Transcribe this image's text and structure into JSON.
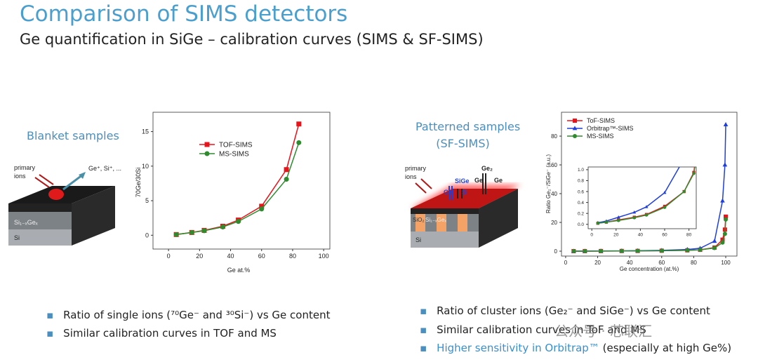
{
  "header": {
    "title": "Comparison of SIMS detectors",
    "subtitle": "Ge quantification in SiGe – calibration curves (SIMS & SF-SIMS)"
  },
  "left": {
    "label": "Blanket samples",
    "diagram": {
      "primary": "primary",
      "ions": "ions",
      "emitted": "Ge⁺, Si⁺, ...",
      "layer": "Si₁₋ₓGeₓ",
      "substrate": "Si"
    },
    "bullets": [
      "Ratio of single ions (⁷⁰Ge⁻ and ³⁰Si⁻) vs Ge content",
      "Similar calibration curves in TOF and MS"
    ]
  },
  "right": {
    "label": [
      "Patterned samples",
      "(SF-SIMS)"
    ],
    "diagram": {
      "primary": "primary",
      "ions": "ions",
      "sige": "SiGe",
      "ge_a": "Ge",
      "si": "Si",
      "ge2": "Ge₂",
      "ge_b": "Ge",
      "ge_c": "Ge",
      "oxide": "SiO₂",
      "layer": "Si₁₋ₓGeₓ",
      "substrate": "Si"
    },
    "bullets": [
      "Ratio of cluster ions (Ge₂⁻ and SiGe⁻) vs Ge content",
      "Similar calibration curves in ToF and MS"
    ],
    "bullet3": {
      "highlight": "Higher sensitivity in Orbitrap™",
      "rest": " (especially at high Ge%)"
    }
  },
  "watermark": "公众号 · 芯联汇",
  "chart_data": [
    {
      "type": "line",
      "x_label": "Ge at.%",
      "y_label": "70Ge/30Si",
      "legend": "upper center",
      "x": [
        5,
        15,
        23,
        35,
        45,
        60,
        76,
        84
      ],
      "xlim": [
        -10,
        104
      ],
      "ylim": [
        -2,
        17.8
      ],
      "xticks": [
        0,
        20,
        40,
        60,
        80,
        100
      ],
      "yticks": [
        0,
        5,
        10,
        15
      ],
      "series": [
        {
          "name": "TOF-SIMS",
          "color": "#e8141b",
          "marker": "square",
          "values": [
            0.1,
            0.4,
            0.7,
            1.3,
            2.2,
            4.2,
            9.5,
            16.1
          ]
        },
        {
          "name": "MS-SIMS",
          "color": "#2e8b2e",
          "marker": "circle",
          "values": [
            0.1,
            0.4,
            0.65,
            1.2,
            2.0,
            3.8,
            8.1,
            13.4
          ]
        }
      ]
    },
    {
      "type": "line",
      "x_label": "Ge concentration (at.%)",
      "y_label": "Ratio Ge₂⁻/SiGe⁻ (a.u.)",
      "legend": "upper left",
      "x": [
        5,
        12,
        22,
        35,
        45,
        60,
        76,
        84,
        93,
        98,
        99.5,
        100
      ],
      "xlim": [
        -2.6,
        107
      ],
      "ylim": [
        -3.4,
        96.6
      ],
      "xticks": [
        0,
        20,
        40,
        60,
        80,
        100
      ],
      "yticks": [
        0,
        20,
        40,
        60,
        80
      ],
      "series": [
        {
          "name": "ToF-SIMS",
          "color": "#e8141b",
          "marker": "square",
          "values": [
            0.02,
            0.04,
            0.08,
            0.13,
            0.18,
            0.33,
            0.6,
            0.95,
            2.5,
            8,
            15,
            24
          ]
        },
        {
          "name": "Orbitrap™-SIMS",
          "color": "#1f3fdc",
          "marker": "triangle",
          "values": [
            0.03,
            0.06,
            0.13,
            0.22,
            0.32,
            0.58,
            1.2,
            2,
            7,
            35,
            60,
            88
          ]
        },
        {
          "name": "MS-SIMS",
          "color": "#2e8b2e",
          "marker": "circle",
          "values": [
            0.02,
            0.04,
            0.07,
            0.12,
            0.17,
            0.31,
            0.6,
            0.93,
            2.2,
            6,
            12,
            22
          ]
        }
      ],
      "inset": {
        "xlim": [
          -3,
          86
        ],
        "ylim": [
          -0.08,
          1.05
        ],
        "xticks": [
          0,
          20,
          40,
          60,
          80
        ],
        "yticks": [
          {
            "value": 0,
            "label": "0.0"
          },
          0.2,
          0.4,
          0.6,
          0.8,
          {
            "value": 1,
            "label": "1.0"
          }
        ]
      }
    }
  ]
}
